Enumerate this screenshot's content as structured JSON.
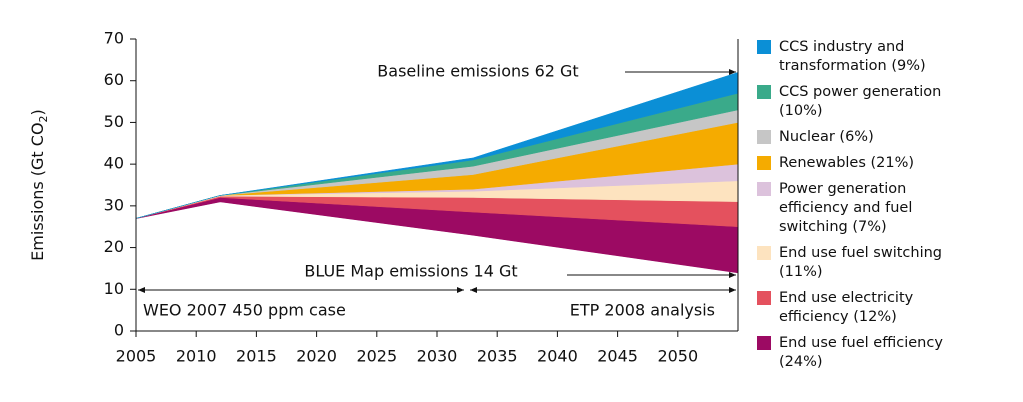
{
  "chart_data": {
    "type": "stacked_area",
    "y_label": "Emissions (Gt CO",
    "y_label_sub": "2",
    "y_label_end": ")",
    "x": [
      2005,
      2012,
      2033,
      2055
    ],
    "xlim": [
      2005,
      2055
    ],
    "xticks": [
      2005,
      2010,
      2015,
      2020,
      2025,
      2030,
      2035,
      2040,
      2045,
      2050
    ],
    "ylim": [
      0,
      70
    ],
    "yticks": [
      0,
      10,
      20,
      30,
      40,
      50,
      60,
      70
    ],
    "base_values": [
      27,
      31,
      23,
      14
    ],
    "series": [
      {
        "name": "CCS industry and transformation (9%)",
        "color": "#0b8fd6",
        "values": [
          0,
          0,
          0.5,
          5
        ]
      },
      {
        "name": "CCS power generation (10%)",
        "color": "#3aaa8a",
        "values": [
          0,
          0,
          1.5,
          4
        ]
      },
      {
        "name": "Nuclear (6%)",
        "color": "#c6c6c6",
        "values": [
          0,
          0,
          2,
          3
        ]
      },
      {
        "name": "Renewables (21%)",
        "color": "#f5ab00",
        "values": [
          0,
          0,
          3.5,
          10
        ]
      },
      {
        "name": "Power generation efficiency and fuel switching (7%)",
        "color": "#dcc2dc",
        "values": [
          0,
          0,
          0.5,
          4
        ]
      },
      {
        "name": "End use fuel switching (11%)",
        "color": "#fde3bf",
        "values": [
          0,
          0.2,
          1.5,
          5
        ]
      },
      {
        "name": "End use electricity efficiency (12%)",
        "color": "#e4515e",
        "values": [
          0,
          0.3,
          3.5,
          6
        ]
      },
      {
        "name": "End use fuel efficiency (24%)",
        "color": "#9c0a63",
        "values": [
          0,
          1,
          5.5,
          11
        ]
      }
    ],
    "annotations": [
      "Baseline emissions 62 Gt",
      "BLUE Map emissions 14 Gt",
      "WEO 2007 450 ppm case",
      "ETP 2008 analysis"
    ]
  }
}
